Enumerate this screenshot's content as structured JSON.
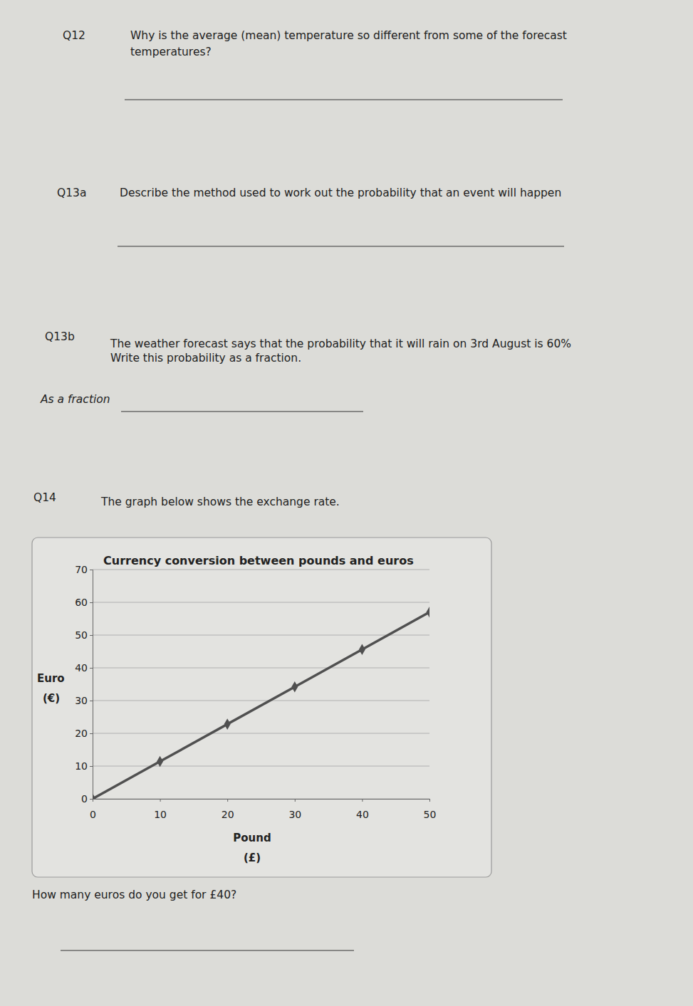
{
  "questions": [
    {
      "number": "Q12",
      "lines": [
        "Why is the average (mean) temperature so different from some of the forecast",
        "temperatures?"
      ]
    },
    {
      "number": "Q13a",
      "lines": [
        "Describe the method used to work out the probability that an event will happen"
      ]
    },
    {
      "number": "Q13b",
      "lines": [
        "The weather forecast says that the probability that it will rain on 3rd August is 60%",
        "Write this probability as a fraction."
      ],
      "answer_label": "As a fraction"
    },
    {
      "number": "Q14",
      "lines": [
        "The graph below shows the exchange rate."
      ],
      "followup": "How many euros do you get for £40?"
    }
  ],
  "chart_data": {
    "type": "line",
    "title": "Currency conversion between pounds and euros",
    "x_label": [
      "Pound",
      "(£)"
    ],
    "y_label": [
      "Euro",
      "(€)"
    ],
    "x": [
      0,
      10,
      20,
      30,
      40,
      50
    ],
    "values": [
      0,
      11.4,
      22.8,
      34.2,
      45.6,
      57
    ],
    "color": "#505050",
    "marker": "diamond",
    "line_style": "solid",
    "xlim": [
      0,
      50
    ],
    "ylim": [
      0,
      70
    ],
    "xticks": [
      0,
      10,
      20,
      30,
      40,
      50
    ],
    "yticks": [
      0,
      10,
      20,
      30,
      40,
      50,
      60,
      70
    ],
    "grid": true
  }
}
